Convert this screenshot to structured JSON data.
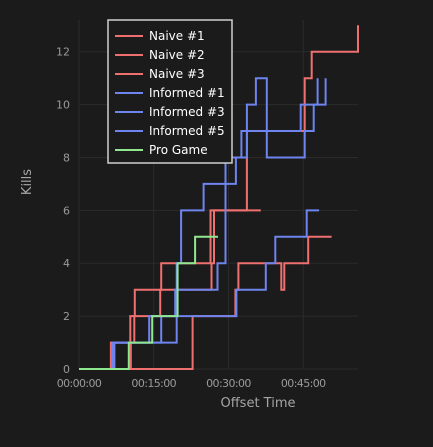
{
  "chart_data": {
    "type": "line",
    "step": "post",
    "title": "",
    "xlabel": "Offset Time",
    "ylabel": "Kills",
    "x_unit": "minutes",
    "xlim": [
      0,
      56
    ],
    "ylim": [
      0,
      13.2
    ],
    "x_ticks": [
      {
        "value": 0,
        "label": "00:00:00"
      },
      {
        "value": 15,
        "label": "00:15:00"
      },
      {
        "value": 30,
        "label": "00:30:00"
      },
      {
        "value": 45,
        "label": "00:45:00"
      }
    ],
    "y_ticks": [
      0,
      2,
      4,
      6,
      8,
      10,
      12
    ],
    "grid": true,
    "legend_position": "top-left",
    "series": [
      {
        "name": "Naive #1",
        "color": "#f07070",
        "x": [
          0,
          10.4,
          11.1,
          16.3,
          26.6,
          27.1,
          33.7,
          40.7,
          45.3,
          46.7,
          56
        ],
        "y": [
          0,
          1,
          2,
          3,
          4,
          6,
          9,
          9,
          11,
          12,
          13
        ]
      },
      {
        "name": "Naive #2",
        "color": "#f07070",
        "x": [
          0,
          6.4,
          9.1,
          10.3,
          11.2,
          16.5,
          22.5,
          26.4,
          28.0,
          32.7,
          36.5
        ],
        "y": [
          0,
          1,
          1,
          2,
          3,
          4,
          4,
          6,
          6,
          6,
          6
        ]
      },
      {
        "name": "Naive #3",
        "color": "#f07070",
        "x": [
          0,
          22.8,
          31.4,
          32.0,
          40.6,
          41.2,
          42.6,
          46.0,
          50.7
        ],
        "y": [
          0,
          2,
          3,
          4,
          3,
          4,
          4,
          5,
          5
        ]
      },
      {
        "name": "Informed #1",
        "color": "#6e84ee",
        "x": [
          0,
          7.0,
          14.1,
          19.3,
          27.8,
          29.4,
          33.7,
          40.0,
          44.5,
          47.9
        ],
        "y": [
          0,
          1,
          2,
          3,
          4,
          8,
          9,
          9,
          10,
          11
        ]
      },
      {
        "name": "Informed #3",
        "color": "#6e84ee",
        "x": [
          0,
          7.1,
          19.6,
          28.3,
          31.6,
          33.9,
          37.5,
          39.4,
          45.7,
          48.2
        ],
        "y": [
          0,
          1,
          2,
          2,
          3,
          3,
          4,
          5,
          6,
          6
        ]
      },
      {
        "name": "Informed #5",
        "color": "#6e84ee",
        "x": [
          0,
          6.8,
          16.5,
          19.6,
          20.5,
          25.0,
          31.5,
          32.6,
          33.7,
          35.5,
          37.7,
          45.3,
          47.1,
          49.5
        ],
        "y": [
          0,
          1,
          2,
          4,
          6,
          7,
          8,
          9,
          10,
          11,
          8,
          9,
          10,
          11
        ]
      },
      {
        "name": "Pro Game",
        "color": "#8fe88f",
        "x": [
          0,
          10.0,
          14.7,
          19.8,
          23.3,
          27.9
        ],
        "y": [
          0,
          1,
          2,
          4,
          5,
          5
        ]
      }
    ]
  }
}
